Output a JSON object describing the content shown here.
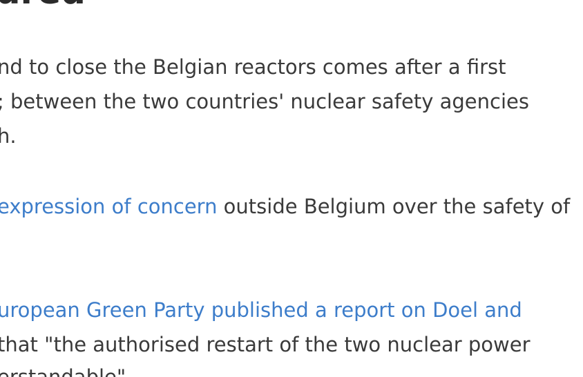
{
  "article": {
    "heading_fragment": "ured",
    "paragraph1": {
      "line1": "nd to close the Belgian reactors comes after a first",
      "line2": "; between the two countries' nuclear safety agencies",
      "line3": "h."
    },
    "paragraph2": {
      "link_text": "expression of concern",
      "line1_rest": " outside Belgium over the safety of"
    },
    "paragraph3": {
      "link_line": "uropean Green Party published a report on Doel and",
      "line2": " that \"the authorised restart of the two nuclear power",
      "line3": "erstandable\"."
    }
  },
  "colors": {
    "body_text": "#3a3a3a",
    "link": "#3d7dca",
    "heading": "#2b2b2b",
    "background": "#ffffff"
  }
}
